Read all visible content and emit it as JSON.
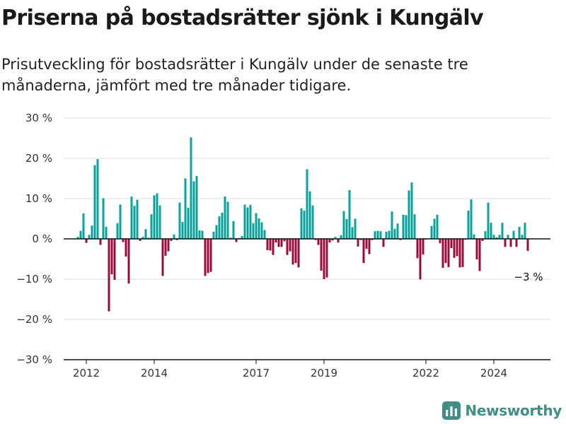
{
  "title": "Priserna på bostadsrätter sjönk i Kungälv",
  "subtitle": "Prisutveckling för bostadsrätter i Kungälv under de senaste tre månaderna, jämfört med tre månader tidigare.",
  "brand": {
    "name": "Newsworthy",
    "color": "#3f8f86",
    "icon": "bar-chart-logo-icon"
  },
  "colors": {
    "positive": "#0aa29a",
    "negative": "#9b0b3b",
    "zero_line": "#111111",
    "grid": "#dddddd"
  },
  "chart_data": {
    "type": "bar",
    "x_start": "2011-10",
    "frequency": "monthly",
    "ylim": [
      -30,
      30
    ],
    "yticks": [
      -30,
      -20,
      -10,
      0,
      10,
      20,
      30
    ],
    "ytick_labels": [
      "−30 %",
      "−20 %",
      "−10 %",
      "0 %",
      "10 %",
      "20 %",
      "30 %"
    ],
    "xticks": [
      "2012",
      "2014",
      "2017",
      "2019",
      "2022",
      "2024"
    ],
    "grid": true,
    "annotation": {
      "text": "−3 %",
      "target": "last"
    },
    "values": [
      0.5,
      2,
      6.3,
      -1,
      1,
      3.3,
      18.3,
      19.8,
      -1.5,
      10.1,
      3,
      -18,
      -8.8,
      -10.2,
      3.9,
      8.5,
      -0.8,
      -4.4,
      -11.1,
      10.5,
      8.2,
      9.7,
      -0.5,
      0.5,
      2.4,
      0.3,
      6.1,
      10.8,
      11.3,
      8.3,
      -9.2,
      -4.2,
      -3.1,
      -0.5,
      1.1,
      -0.3,
      9,
      4.2,
      15,
      7.7,
      25.2,
      14.3,
      15.6,
      2.1,
      2,
      -9.2,
      -8.5,
      -8.2,
      1.8,
      3.4,
      5.6,
      6.5,
      10.5,
      9.2,
      0.3,
      4.4,
      -0.8,
      0.2,
      0.7,
      8.5,
      7.8,
      8.4,
      3.9,
      6.4,
      5.1,
      4.1,
      2.2,
      -2.8,
      -2.9,
      -4,
      -0.9,
      -2,
      -2,
      -0.6,
      -4,
      -3.1,
      -6.4,
      -6,
      -7.1,
      7.6,
      7,
      17.3,
      11.8,
      8.3,
      -0.3,
      -1.5,
      -7.9,
      -10,
      -9.6,
      -0.9,
      -0.4,
      0.5,
      -0.9,
      0.9,
      6.9,
      4.9,
      12.1,
      2.9,
      5,
      -1.9,
      -0.3,
      -6,
      -2.5,
      -3.8,
      -0.3,
      1.9,
      2,
      1.9,
      -2,
      1.8,
      2,
      6.8,
      2.5,
      3.8,
      -0.3,
      6,
      5.9,
      12,
      14,
      6.1,
      -4.8,
      -10.1,
      -3.9,
      -0.2,
      -0.1,
      3.2,
      5,
      6,
      -1.1,
      -7.2,
      -6,
      -7,
      -2.3,
      -4.7,
      -4.3,
      -7.1,
      -7,
      -0.2,
      7,
      9.8,
      1.1,
      -5.1,
      -8,
      -0.5,
      1.9,
      9,
      4,
      1,
      0.4,
      1,
      4,
      -2,
      1,
      -2,
      2,
      -2,
      3,
      1,
      4,
      -3
    ],
    "last_label": "−3 %"
  }
}
